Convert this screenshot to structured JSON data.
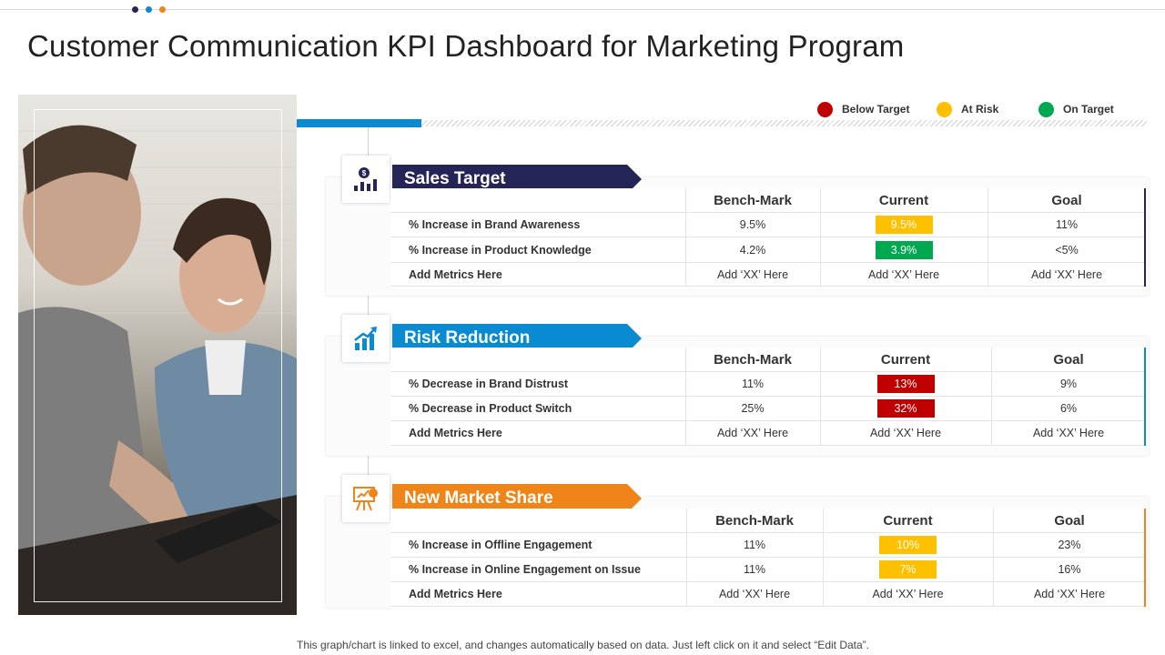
{
  "colors": {
    "navy": "#252457",
    "blue": "#0a8bd1",
    "orange": "#ef8419",
    "red": "#c00000",
    "amber": "#ffc000",
    "green": "#00a850"
  },
  "title": "Customer Communication KPI Dashboard for Marketing Program",
  "legend": [
    {
      "label": "Below Target",
      "color": "#c00000"
    },
    {
      "label": "At Risk",
      "color": "#ffc000"
    },
    {
      "label": "On Target",
      "color": "#00a850"
    }
  ],
  "sections": [
    {
      "title": "Sales Target",
      "icon": "sales-chart-icon",
      "headers": [
        "Bench-Mark",
        "Current",
        "Goal"
      ],
      "rows": [
        {
          "metric": "% Increase in Brand Awareness",
          "benchmark": "9.5%",
          "current": "9.5%",
          "status": "at-risk",
          "goal": "11%"
        },
        {
          "metric": "% Increase in Product Knowledge",
          "benchmark": "4.2%",
          "current": "3.9%",
          "status": "on-target",
          "goal": "<5%"
        },
        {
          "metric": "Add Metrics Here",
          "benchmark": "Add ‘XX’ Here",
          "current": "Add ‘XX’ Here",
          "status": "",
          "goal": "Add ‘XX’ Here"
        }
      ]
    },
    {
      "title": "Risk Reduction",
      "icon": "growth-chart-icon",
      "headers": [
        "Bench-Mark",
        "Current",
        "Goal"
      ],
      "rows": [
        {
          "metric": "% Decrease in Brand Distrust",
          "benchmark": "11%",
          "current": "13%",
          "status": "below-target",
          "goal": "9%"
        },
        {
          "metric": "% Decrease in Product Switch",
          "benchmark": "25%",
          "current": "32%",
          "status": "below-target",
          "goal": "6%"
        },
        {
          "metric": "Add Metrics Here",
          "benchmark": "Add ‘XX’ Here",
          "current": "Add ‘XX’ Here",
          "status": "",
          "goal": "Add ‘XX’ Here"
        }
      ]
    },
    {
      "title": "New Market Share",
      "icon": "presentation-board-icon",
      "headers": [
        "Bench-Mark",
        "Current",
        "Goal"
      ],
      "rows": [
        {
          "metric": "% Increase in Offline Engagement",
          "benchmark": "11%",
          "current": "10%",
          "status": "at-risk",
          "goal": "23%"
        },
        {
          "metric": "% Increase in Online Engagement on Issue",
          "benchmark": "11%",
          "current": "7%",
          "status": "at-risk",
          "goal": "16%"
        },
        {
          "metric": "Add Metrics Here",
          "benchmark": "Add ‘XX’ Here",
          "current": "Add ‘XX’ Here",
          "status": "",
          "goal": "Add ‘XX’ Here"
        }
      ]
    }
  ],
  "footnote": "This graph/chart is linked to excel,  and changes automatically based on data. Just left click on it and select “Edit Data”."
}
